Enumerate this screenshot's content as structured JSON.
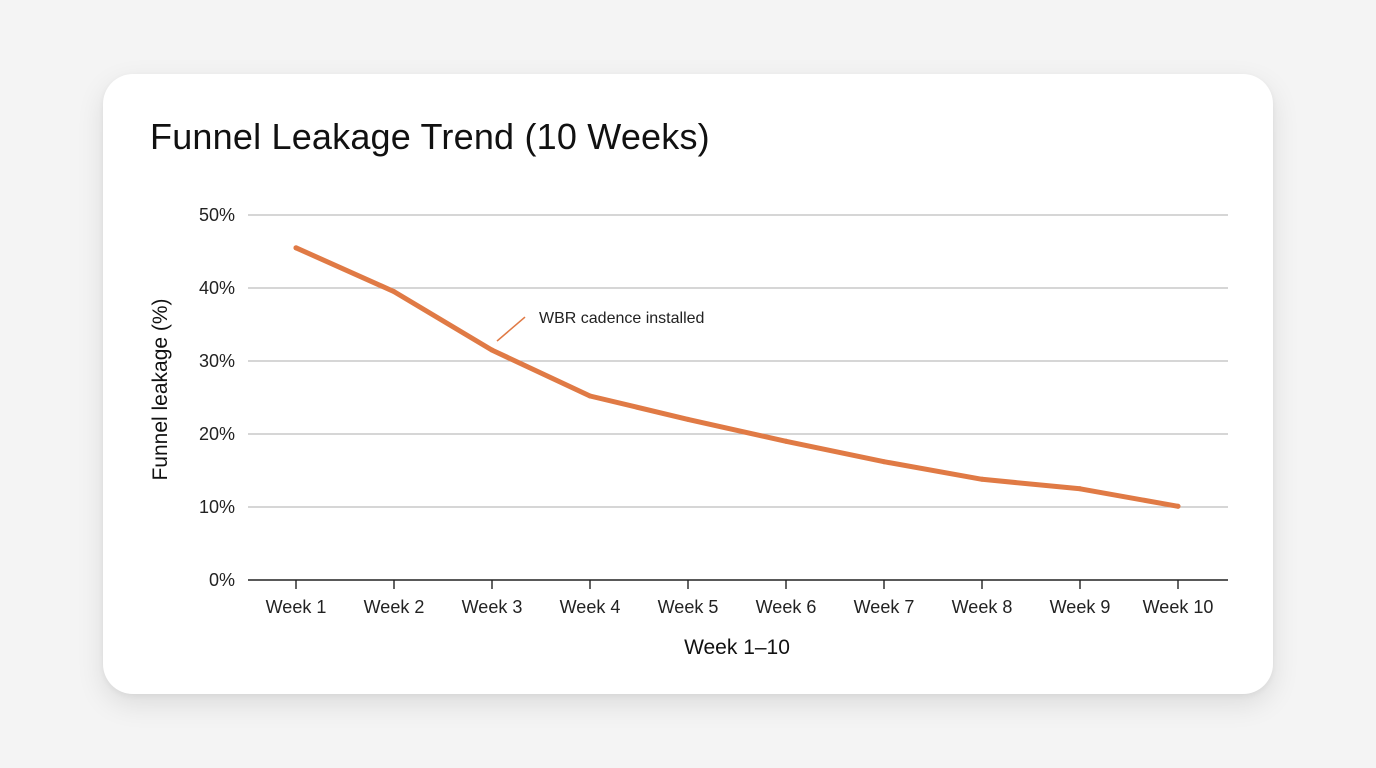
{
  "chart_data": {
    "type": "line",
    "title": "Funnel Leakage Trend (10 Weeks)",
    "xlabel": "Week 1–10",
    "ylabel": "Funnel leakage (%)",
    "categories": [
      "Week 1",
      "Week 2",
      "Week 3",
      "Week 4",
      "Week 5",
      "Week 6",
      "Week 7",
      "Week 8",
      "Week 9",
      "Week 10"
    ],
    "series": [
      {
        "name": "Funnel leakage",
        "values": [
          45.5,
          39.5,
          31.5,
          25.2,
          22.0,
          19.0,
          16.2,
          13.8,
          12.5,
          10.1
        ],
        "color": "#e07a45"
      }
    ],
    "ylim": [
      0,
      50
    ],
    "yticks": [
      0,
      10,
      20,
      30,
      40,
      50
    ],
    "ytick_labels": [
      "0%",
      "10%",
      "20%",
      "30%",
      "40%",
      "50%"
    ],
    "grid": true,
    "annotation": {
      "text": "WBR cadence installed",
      "week_index": 2,
      "value": 31.5
    },
    "colors": {
      "line": "#e07a45",
      "grid": "#bdbdbd",
      "axis": "#222222"
    }
  }
}
